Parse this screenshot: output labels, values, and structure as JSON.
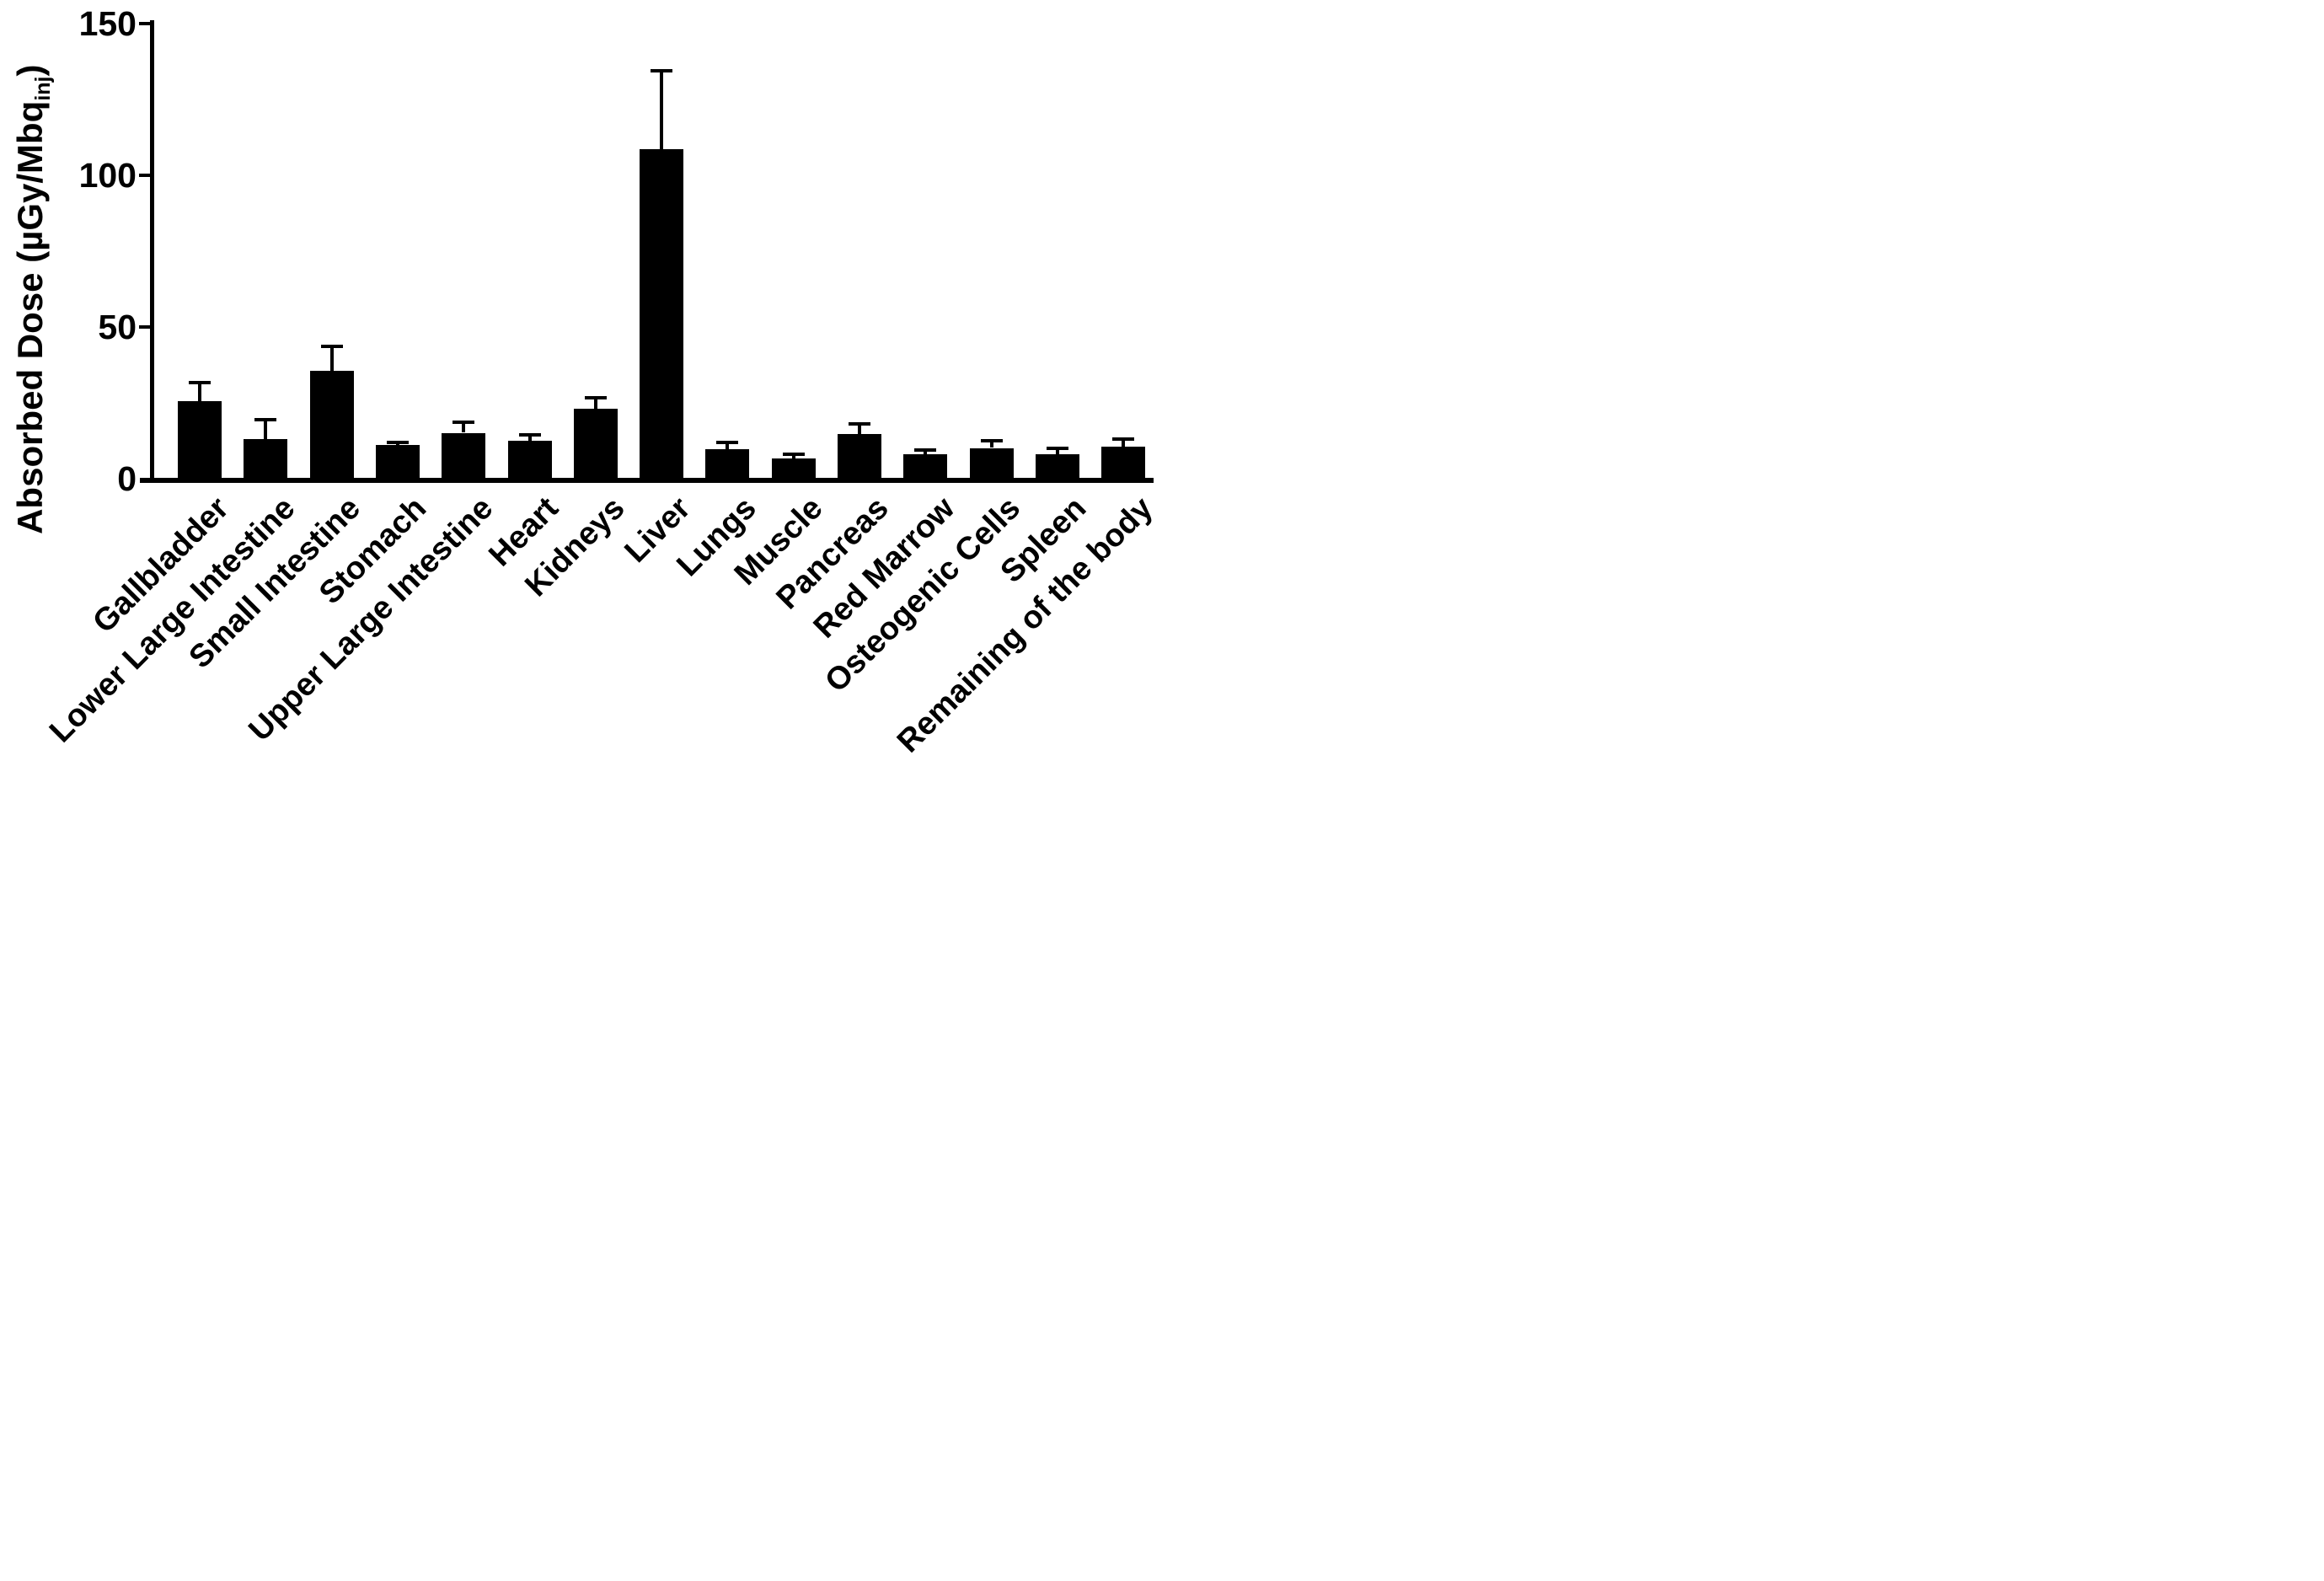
{
  "chart_data": {
    "type": "bar",
    "title": "",
    "ylabel": {
      "main": "Absorbed Dose (µGy/Mbq",
      "sub": "inj",
      "end": ")"
    },
    "xlabel": "",
    "categories": [
      "Gallbladder",
      "Lower Large Intestine",
      "Small Intestine",
      "Stomach",
      "Upper Large Intestine",
      "Heart",
      "Kidneys",
      "Liver",
      "Lungs",
      "Muscle",
      "Pancreas",
      "Red Marrow",
      "Osteogenic Cells",
      "Spleen",
      "Remaining of the body"
    ],
    "series": [
      {
        "name": "Absorbed Dose",
        "values": [
          25.5,
          13,
          35.5,
          11,
          15,
          12.5,
          23,
          108.5,
          9.5,
          6.5,
          14.5,
          8,
          10,
          8,
          10.5
        ],
        "errors_sd_upper": [
          6.5,
          7,
          8.5,
          1.3,
          4,
          2.5,
          4,
          26.5,
          3,
          2,
          4,
          2,
          3,
          2.5,
          3
        ]
      }
    ],
    "yticks": [
      0,
      50,
      100,
      150
    ],
    "ylim": [
      0,
      150
    ],
    "grid": false,
    "legend_position": "none",
    "error_bar_style": "upper-only-capped",
    "colors": {
      "bar": "#000000",
      "axis": "#000000",
      "text": "#000000",
      "background": "#ffffff"
    }
  }
}
